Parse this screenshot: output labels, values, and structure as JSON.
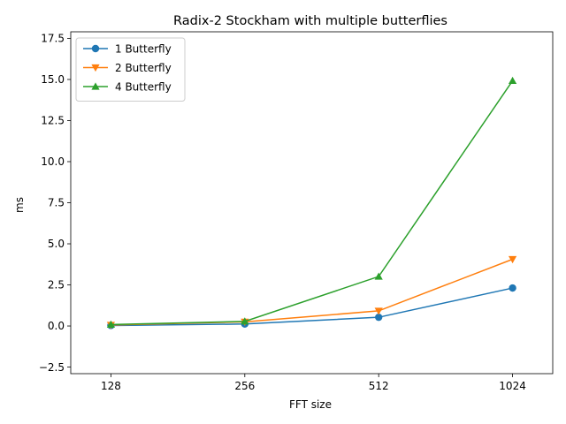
{
  "chart_data": {
    "type": "line",
    "title": "Radix-2 Stockham with multiple butterflies",
    "xlabel": "FFT size",
    "ylabel": "ms",
    "categories": [
      "128",
      "256",
      "512",
      "1024"
    ],
    "ylim": [
      -2.9,
      17.9
    ],
    "yticks": [
      -2.5,
      0.0,
      2.5,
      5.0,
      7.5,
      10.0,
      12.5,
      15.0,
      17.5
    ],
    "ytick_labels": [
      "−2.5",
      "0.0",
      "2.5",
      "5.0",
      "7.5",
      "10.0",
      "12.5",
      "15.0",
      "17.5"
    ],
    "grid": false,
    "legend_position": "top-left",
    "series": [
      {
        "name": "1 Butterfly",
        "values": [
          0.03,
          0.12,
          0.53,
          2.31
        ],
        "color": "#1f77b4",
        "marker": "circle"
      },
      {
        "name": "2 Butterfly",
        "values": [
          0.06,
          0.25,
          0.92,
          4.06
        ],
        "color": "#ff7f0e",
        "marker": "triangle-down"
      },
      {
        "name": "4 Butterfly",
        "values": [
          0.09,
          0.28,
          3.01,
          14.92
        ],
        "color": "#2ca02c",
        "marker": "triangle-up"
      }
    ]
  }
}
